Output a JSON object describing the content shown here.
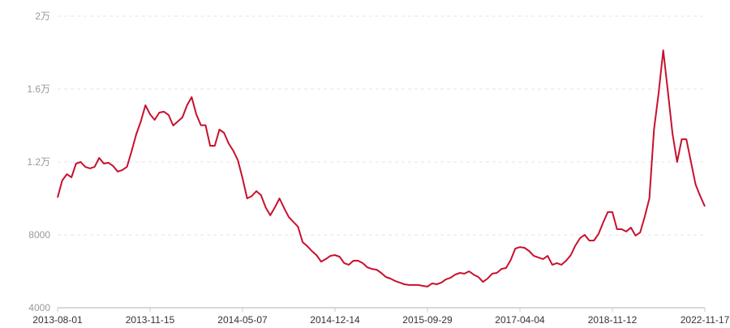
{
  "chart_data": {
    "type": "line",
    "title": "",
    "xlabel": "",
    "ylabel": "",
    "ylim": [
      4000,
      20000
    ],
    "y_ticks": [
      4000,
      8000,
      12000,
      16000,
      20000
    ],
    "y_tick_labels": [
      "4000",
      "8000",
      "1.2万",
      "1.6万",
      "2万"
    ],
    "x_tick_labels": [
      "2013-08-01",
      "2013-11-15",
      "2014-05-07",
      "2014-12-14",
      "2015-09-29",
      "2017-04-04",
      "2018-11-12",
      "2022-11-17"
    ],
    "grid": "horizontal dashed",
    "legend": "none",
    "series": [
      {
        "color": "#c8102e",
        "values": [
          10045,
          10980,
          11330,
          11160,
          11910,
          12000,
          11730,
          11650,
          11730,
          12220,
          11910,
          11960,
          11780,
          11470,
          11560,
          11730,
          12580,
          13510,
          14220,
          15110,
          14620,
          14310,
          14710,
          14760,
          14580,
          14000,
          14220,
          14450,
          15110,
          15560,
          14620,
          14020,
          14020,
          12890,
          12890,
          13780,
          13600,
          13020,
          12620,
          12090,
          11110,
          10000,
          10130,
          10400,
          10180,
          9510,
          9070,
          9510,
          10000,
          9470,
          8980,
          8710,
          8450,
          7600,
          7380,
          7110,
          6890,
          6530,
          6670,
          6850,
          6890,
          6800,
          6450,
          6360,
          6580,
          6580,
          6450,
          6220,
          6130,
          6090,
          5910,
          5690,
          5600,
          5470,
          5380,
          5290,
          5250,
          5250,
          5250,
          5200,
          5160,
          5340,
          5290,
          5380,
          5560,
          5650,
          5820,
          5910,
          5870,
          6000,
          5820,
          5690,
          5420,
          5600,
          5870,
          5910,
          6130,
          6180,
          6620,
          7250,
          7330,
          7290,
          7110,
          6850,
          6760,
          6670,
          6850,
          6360,
          6450,
          6360,
          6580,
          6890,
          7420,
          7820,
          8000,
          7690,
          7690,
          8050,
          8670,
          9250,
          9250,
          8310,
          8310,
          8180,
          8400,
          7960,
          8130,
          9000,
          10000,
          13780,
          15780,
          18130,
          15870,
          13560,
          12000,
          13250,
          13250,
          12000,
          10760,
          10130,
          9560
        ]
      }
    ]
  }
}
